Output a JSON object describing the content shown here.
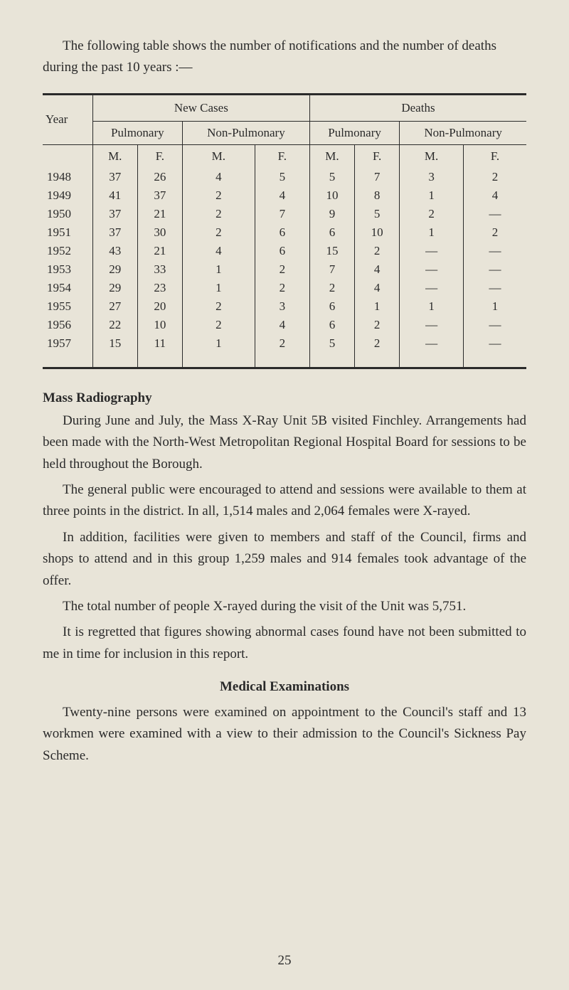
{
  "intro": "The following table shows the number of notifications and the number of deaths during the past 10 years :—",
  "table": {
    "group_headers": [
      "New Cases",
      "Deaths"
    ],
    "categories": [
      "Pulmonary",
      "Non-Pulmonary",
      "Pulmonary",
      "Non-Pulmonary"
    ],
    "year_label": "Year",
    "mf": [
      "M.",
      "F.",
      "M.",
      "F.",
      "M.",
      "F.",
      "M.",
      "F."
    ],
    "rows": [
      {
        "year": "1948",
        "cells": [
          "37",
          "26",
          "4",
          "5",
          "5",
          "7",
          "3",
          "2"
        ]
      },
      {
        "year": "1949",
        "cells": [
          "41",
          "37",
          "2",
          "4",
          "10",
          "8",
          "1",
          "4"
        ]
      },
      {
        "year": "1950",
        "cells": [
          "37",
          "21",
          "2",
          "7",
          "9",
          "5",
          "2",
          "—"
        ]
      },
      {
        "year": "1951",
        "cells": [
          "37",
          "30",
          "2",
          "6",
          "6",
          "10",
          "1",
          "2"
        ]
      },
      {
        "year": "1952",
        "cells": [
          "43",
          "21",
          "4",
          "6",
          "15",
          "2",
          "—",
          "—"
        ]
      },
      {
        "year": "1953",
        "cells": [
          "29",
          "33",
          "1",
          "2",
          "7",
          "4",
          "—",
          "—"
        ]
      },
      {
        "year": "1954",
        "cells": [
          "29",
          "23",
          "1",
          "2",
          "2",
          "4",
          "—",
          "—"
        ]
      },
      {
        "year": "1955",
        "cells": [
          "27",
          "20",
          "2",
          "3",
          "6",
          "1",
          "1",
          "1"
        ]
      },
      {
        "year": "1956",
        "cells": [
          "22",
          "10",
          "2",
          "4",
          "6",
          "2",
          "—",
          "—"
        ]
      },
      {
        "year": "1957",
        "cells": [
          "15",
          "11",
          "1",
          "2",
          "5",
          "2",
          "—",
          "—"
        ]
      }
    ]
  },
  "mass_radiography": {
    "title": "Mass Radiography",
    "p1": "During June and July, the Mass X-Ray Unit 5B visited Finchley. Arrangements had been made with the North-West Metropolitan Regional Hospital Board for sessions to be held throughout the Borough.",
    "p2": "The general public were encouraged to attend and sessions were available to them at three points in the district. In all, 1,514 males and 2,064 females were X-rayed.",
    "p3": "In addition, facilities were given to members and staff of the Council, firms and shops to attend and in this group 1,259 males and 914 females took advantage of the offer.",
    "p4": "The total number of people X-rayed during the visit of the Unit was 5,751.",
    "p5": "It is regretted that figures showing abnormal cases found have not been submitted to me in time for inclusion in this report."
  },
  "medical_exams": {
    "title": "Medical Examinations",
    "p1": "Twenty-nine persons were examined on appointment to the Council's staff and 13 workmen were examined with a view to their admission to the Council's Sickness Pay Scheme."
  },
  "page_number": "25"
}
